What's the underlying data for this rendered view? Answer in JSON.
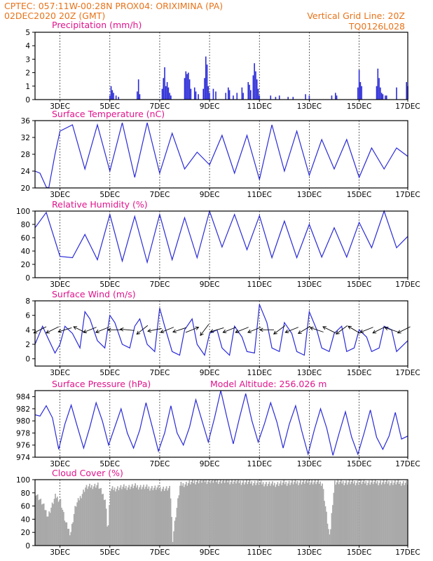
{
  "header": {
    "left_line1": "CPTEC:   057:11W-00:28N   PROX04: ORIXIMINA (PA)",
    "left_line2": "02DEC2020 20Z (GMT)",
    "right_line1": "Vertical Grid Line: 20Z",
    "right_line2": "TQ0126L028"
  },
  "x_ticks": [
    "3DEC",
    "5DEC",
    "7DEC",
    "9DEC",
    "11DEC",
    "13DEC",
    "15DEC",
    "17DEC"
  ],
  "chart_data": [
    {
      "type": "bar",
      "title": "Precipitation (mm/h)",
      "ylim": [
        0,
        5
      ],
      "yticks": [
        0,
        1,
        2,
        3,
        4,
        5
      ],
      "x_range_days": [
        2.0,
        16.95
      ],
      "bars": [
        [
          5.0,
          0.3
        ],
        [
          5.05,
          1.0
        ],
        [
          5.1,
          0.7
        ],
        [
          5.15,
          0.5
        ],
        [
          5.25,
          0.3
        ],
        [
          5.35,
          0.2
        ],
        [
          6.1,
          0.6
        ],
        [
          6.15,
          1.5
        ],
        [
          6.2,
          0.4
        ],
        [
          7.1,
          0.8
        ],
        [
          7.15,
          1.6
        ],
        [
          7.2,
          2.4
        ],
        [
          7.25,
          1.0
        ],
        [
          7.3,
          1.3
        ],
        [
          7.35,
          0.9
        ],
        [
          7.4,
          0.5
        ],
        [
          7.45,
          0.3
        ],
        [
          8.0,
          1.6
        ],
        [
          8.05,
          2.1
        ],
        [
          8.1,
          1.9
        ],
        [
          8.15,
          2.0
        ],
        [
          8.2,
          1.5
        ],
        [
          8.25,
          0.8
        ],
        [
          8.4,
          0.9
        ],
        [
          8.45,
          0.6
        ],
        [
          8.55,
          0.4
        ],
        [
          8.75,
          0.8
        ],
        [
          8.8,
          1.6
        ],
        [
          8.85,
          3.2
        ],
        [
          8.9,
          2.6
        ],
        [
          8.95,
          1.0
        ],
        [
          9.0,
          0.5
        ],
        [
          9.15,
          0.8
        ],
        [
          9.25,
          0.6
        ],
        [
          9.65,
          0.5
        ],
        [
          9.75,
          0.9
        ],
        [
          9.8,
          0.7
        ],
        [
          9.95,
          0.3
        ],
        [
          10.1,
          0.5
        ],
        [
          10.3,
          0.9
        ],
        [
          10.35,
          0.5
        ],
        [
          10.55,
          1.3
        ],
        [
          10.6,
          1.1
        ],
        [
          10.65,
          0.7
        ],
        [
          10.75,
          1.8
        ],
        [
          10.8,
          2.7
        ],
        [
          10.85,
          2.1
        ],
        [
          10.9,
          1.5
        ],
        [
          10.95,
          0.8
        ],
        [
          11.0,
          0.3
        ],
        [
          11.45,
          0.3
        ],
        [
          11.65,
          0.2
        ],
        [
          11.8,
          0.3
        ],
        [
          12.15,
          0.2
        ],
        [
          12.35,
          0.2
        ],
        [
          12.85,
          0.4
        ],
        [
          13.0,
          0.3
        ],
        [
          13.9,
          0.3
        ],
        [
          14.05,
          0.5
        ],
        [
          14.1,
          0.3
        ],
        [
          14.95,
          0.9
        ],
        [
          15.0,
          2.2
        ],
        [
          15.05,
          1.3
        ],
        [
          15.1,
          1.0
        ],
        [
          15.7,
          1.0
        ],
        [
          15.75,
          2.3
        ],
        [
          15.8,
          1.6
        ],
        [
          15.85,
          0.9
        ],
        [
          15.9,
          0.5
        ],
        [
          15.95,
          0.4
        ],
        [
          16.05,
          0.3
        ],
        [
          16.1,
          0.3
        ],
        [
          16.5,
          0.9
        ],
        [
          16.9,
          1.3
        ],
        [
          16.95,
          1.0
        ]
      ]
    },
    {
      "type": "line",
      "title": "Surface Temperature (nC)",
      "ylim": [
        20,
        36
      ],
      "yticks": [
        20,
        24,
        28,
        32,
        36
      ],
      "x": [
        2.0,
        2.2,
        2.45,
        2.55,
        2.8,
        3.0,
        3.5,
        4.0,
        4.5,
        5.0,
        5.5,
        6.0,
        6.5,
        7.0,
        7.5,
        8.0,
        8.5,
        9.0,
        9.5,
        10.0,
        10.5,
        11.0,
        11.5,
        12.0,
        12.5,
        13.0,
        13.5,
        14.0,
        14.5,
        15.0,
        15.5,
        16.0,
        16.5,
        16.95
      ],
      "values": [
        24.0,
        23.5,
        20.2,
        20.0,
        28.0,
        33.5,
        35.0,
        24.5,
        35.0,
        24.0,
        35.5,
        22.5,
        35.5,
        23.5,
        33.0,
        24.5,
        28.5,
        25.5,
        32.5,
        23.5,
        32.5,
        22.0,
        35.0,
        24.0,
        33.5,
        23.0,
        31.5,
        24.5,
        31.5,
        22.5,
        29.5,
        24.5,
        29.5,
        27.5
      ]
    },
    {
      "type": "line",
      "title": "Relative Humidity (%)",
      "ylim": [
        0,
        100
      ],
      "yticks": [
        0,
        20,
        40,
        60,
        80,
        100
      ],
      "x": [
        2.0,
        2.45,
        3.0,
        3.5,
        4.0,
        4.5,
        5.0,
        5.5,
        6.0,
        6.5,
        7.0,
        7.5,
        8.0,
        8.5,
        9.0,
        9.5,
        10.0,
        10.5,
        11.0,
        11.5,
        12.0,
        12.5,
        13.0,
        13.5,
        14.0,
        14.5,
        15.0,
        15.5,
        16.0,
        16.5,
        16.95
      ],
      "values": [
        75,
        98,
        32,
        30,
        65,
        27,
        95,
        25,
        92,
        23,
        95,
        27,
        90,
        30,
        100,
        46,
        95,
        42,
        93,
        30,
        85,
        30,
        80,
        31,
        75,
        31,
        83,
        45,
        100,
        45,
        62
      ]
    },
    {
      "type": "line",
      "title": "Surface Wind (m/s)",
      "ylim": [
        -1,
        8
      ],
      "yticks": [
        0,
        2,
        4,
        6,
        8
      ],
      "x": [
        2.0,
        2.3,
        2.5,
        2.8,
        3.0,
        3.2,
        3.5,
        3.8,
        4.0,
        4.2,
        4.5,
        4.8,
        5.0,
        5.2,
        5.5,
        5.8,
        6.0,
        6.2,
        6.5,
        6.8,
        7.0,
        7.2,
        7.5,
        7.8,
        8.0,
        8.3,
        8.5,
        8.8,
        9.0,
        9.3,
        9.5,
        9.8,
        10.0,
        10.3,
        10.5,
        10.8,
        11.0,
        11.3,
        11.5,
        11.8,
        12.0,
        12.3,
        12.5,
        12.8,
        13.0,
        13.3,
        13.5,
        13.8,
        14.0,
        14.3,
        14.5,
        14.8,
        15.0,
        15.3,
        15.5,
        15.8,
        16.0,
        16.3,
        16.5,
        16.95
      ],
      "values": [
        2.0,
        4.5,
        3.0,
        0.8,
        2.0,
        4.5,
        3.5,
        1.5,
        6.5,
        5.5,
        2.5,
        1.5,
        6.0,
        5.0,
        2.0,
        1.5,
        4.5,
        5.5,
        2.0,
        1.0,
        7.0,
        4.5,
        1.0,
        0.5,
        4.0,
        5.5,
        2.0,
        0.5,
        3.5,
        4.0,
        1.5,
        0.5,
        4.5,
        3.0,
        1.0,
        0.8,
        7.5,
        5.0,
        1.5,
        1.0,
        5.0,
        3.5,
        1.0,
        0.5,
        6.5,
        4.0,
        1.5,
        1.0,
        3.5,
        4.5,
        1.0,
        1.5,
        4.0,
        3.0,
        1.0,
        1.5,
        4.5,
        4.0,
        1.0,
        2.5
      ],
      "barbs_x": [
        2.2,
        2.7,
        3.2,
        3.8,
        4.2,
        4.7,
        5.2,
        5.7,
        6.3,
        6.8,
        7.3,
        7.8,
        8.3,
        8.8,
        9.3,
        9.8,
        10.3,
        10.8,
        11.3,
        11.8,
        12.3,
        12.8,
        13.3,
        13.8,
        14.3,
        14.8,
        15.3,
        15.8,
        16.3,
        16.8
      ],
      "barbs_u": [
        -1,
        -1,
        -1,
        -1,
        -1,
        -1,
        -1,
        -1,
        -0.5,
        -1,
        -0.5,
        -0.6,
        0.5,
        -0.3,
        -1,
        -1,
        -1,
        -1,
        -1,
        -0.8,
        -1,
        -0.5,
        -0.3,
        -0.4,
        -0.4,
        -0.5,
        -0.5,
        -0.6,
        -0.6,
        -0.6
      ],
      "barbs_v": [
        -0.5,
        -0.5,
        -0.3,
        0.5,
        -0.4,
        -0.4,
        0,
        0.1,
        -0.4,
        -0.2,
        -0.2,
        -0.2,
        0.2,
        -0.4,
        -0.3,
        -0.4,
        -0.4,
        -0.4,
        0,
        -0.6,
        -0.4,
        -0.3,
        0.1,
        0.2,
        -0.3,
        0.3,
        -0.2,
        -0.3,
        0.2,
        -0.3
      ]
    },
    {
      "type": "line",
      "title": "Surface Pressure (hPa)",
      "annotation": "Model Altitude: 256.026 m",
      "ylim": [
        974,
        985
      ],
      "yticks": [
        974,
        976,
        978,
        980,
        982,
        984
      ],
      "x": [
        2.0,
        2.2,
        2.45,
        2.7,
        2.95,
        3.2,
        3.45,
        3.7,
        3.95,
        4.2,
        4.45,
        4.7,
        4.95,
        5.2,
        5.45,
        5.7,
        5.95,
        6.2,
        6.45,
        6.7,
        6.95,
        7.2,
        7.45,
        7.7,
        7.95,
        8.2,
        8.45,
        8.7,
        8.95,
        9.2,
        9.45,
        9.7,
        9.95,
        10.2,
        10.45,
        10.7,
        10.95,
        11.2,
        11.45,
        11.7,
        11.95,
        12.2,
        12.45,
        12.7,
        12.95,
        13.2,
        13.45,
        13.7,
        13.95,
        14.2,
        14.45,
        14.7,
        14.95,
        15.2,
        15.45,
        15.7,
        15.95,
        16.2,
        16.45,
        16.7,
        16.95
      ],
      "values": [
        981,
        980.8,
        982.5,
        980.5,
        975.3,
        979.5,
        982.6,
        979,
        975.5,
        979,
        983,
        980,
        976,
        979,
        982,
        978,
        975.5,
        978.5,
        983,
        979,
        975,
        978,
        982.5,
        978,
        976,
        979,
        983.5,
        980,
        976.5,
        980.5,
        985,
        980.5,
        976.2,
        980.5,
        984.5,
        980,
        976.5,
        979.5,
        983,
        979.8,
        975.5,
        979.5,
        982.5,
        978.3,
        974.5,
        978.5,
        982,
        978.8,
        974.3,
        978,
        981.5,
        977.3,
        974.5,
        978,
        981.8,
        977.3,
        975.3,
        977.5,
        981.4,
        977,
        977.5
      ]
    },
    {
      "type": "bar",
      "title": "Cloud Cover (%)",
      "ylim": [
        0,
        100
      ],
      "yticks": [
        0,
        20,
        40,
        60,
        80,
        100
      ],
      "x_range_days": [
        2.0,
        16.95
      ],
      "base_profile": [
        [
          2.0,
          80
        ],
        [
          2.3,
          62
        ],
        [
          2.5,
          45
        ],
        [
          2.8,
          75
        ],
        [
          3.0,
          68
        ],
        [
          3.2,
          35
        ],
        [
          3.4,
          18
        ],
        [
          3.6,
          60
        ],
        [
          4.0,
          88
        ],
        [
          4.5,
          92
        ],
        [
          4.8,
          70
        ],
        [
          4.9,
          20
        ],
        [
          5.0,
          85
        ],
        [
          5.4,
          88
        ],
        [
          6.0,
          90
        ],
        [
          6.5,
          88
        ],
        [
          7.0,
          87
        ],
        [
          7.4,
          86
        ],
        [
          7.5,
          10
        ],
        [
          7.6,
          40
        ],
        [
          7.8,
          92
        ],
        [
          8.5,
          98
        ],
        [
          9.5,
          98
        ],
        [
          10.5,
          96
        ],
        [
          11.0,
          95
        ],
        [
          11.5,
          93
        ],
        [
          12.0,
          95
        ],
        [
          12.5,
          96
        ],
        [
          13.0,
          97
        ],
        [
          13.5,
          95
        ],
        [
          13.8,
          10
        ],
        [
          13.9,
          60
        ],
        [
          14.0,
          96
        ],
        [
          15.0,
          96
        ],
        [
          16.0,
          96
        ],
        [
          16.95,
          95
        ]
      ]
    }
  ]
}
